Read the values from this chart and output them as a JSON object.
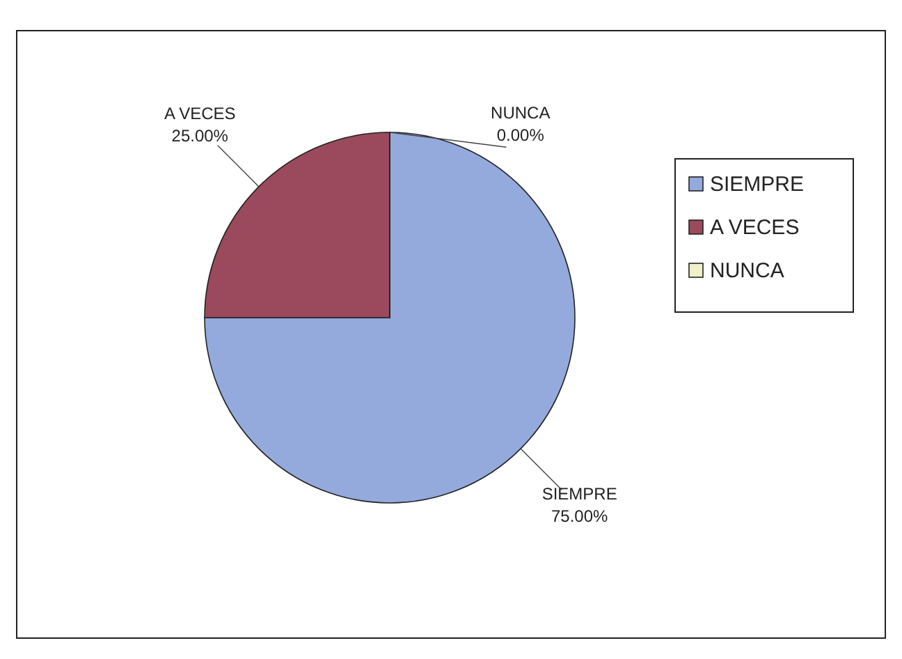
{
  "chart_data": {
    "type": "pie",
    "categories": [
      "SIEMPRE",
      "A VECES",
      "NUNCA"
    ],
    "values": [
      75,
      25,
      0
    ],
    "colors": [
      "#94aadc",
      "#9a4a5c",
      "#f2f0c8"
    ],
    "value_labels": [
      "75.00%",
      "25.00%",
      "0.00%"
    ],
    "legend": "right"
  }
}
